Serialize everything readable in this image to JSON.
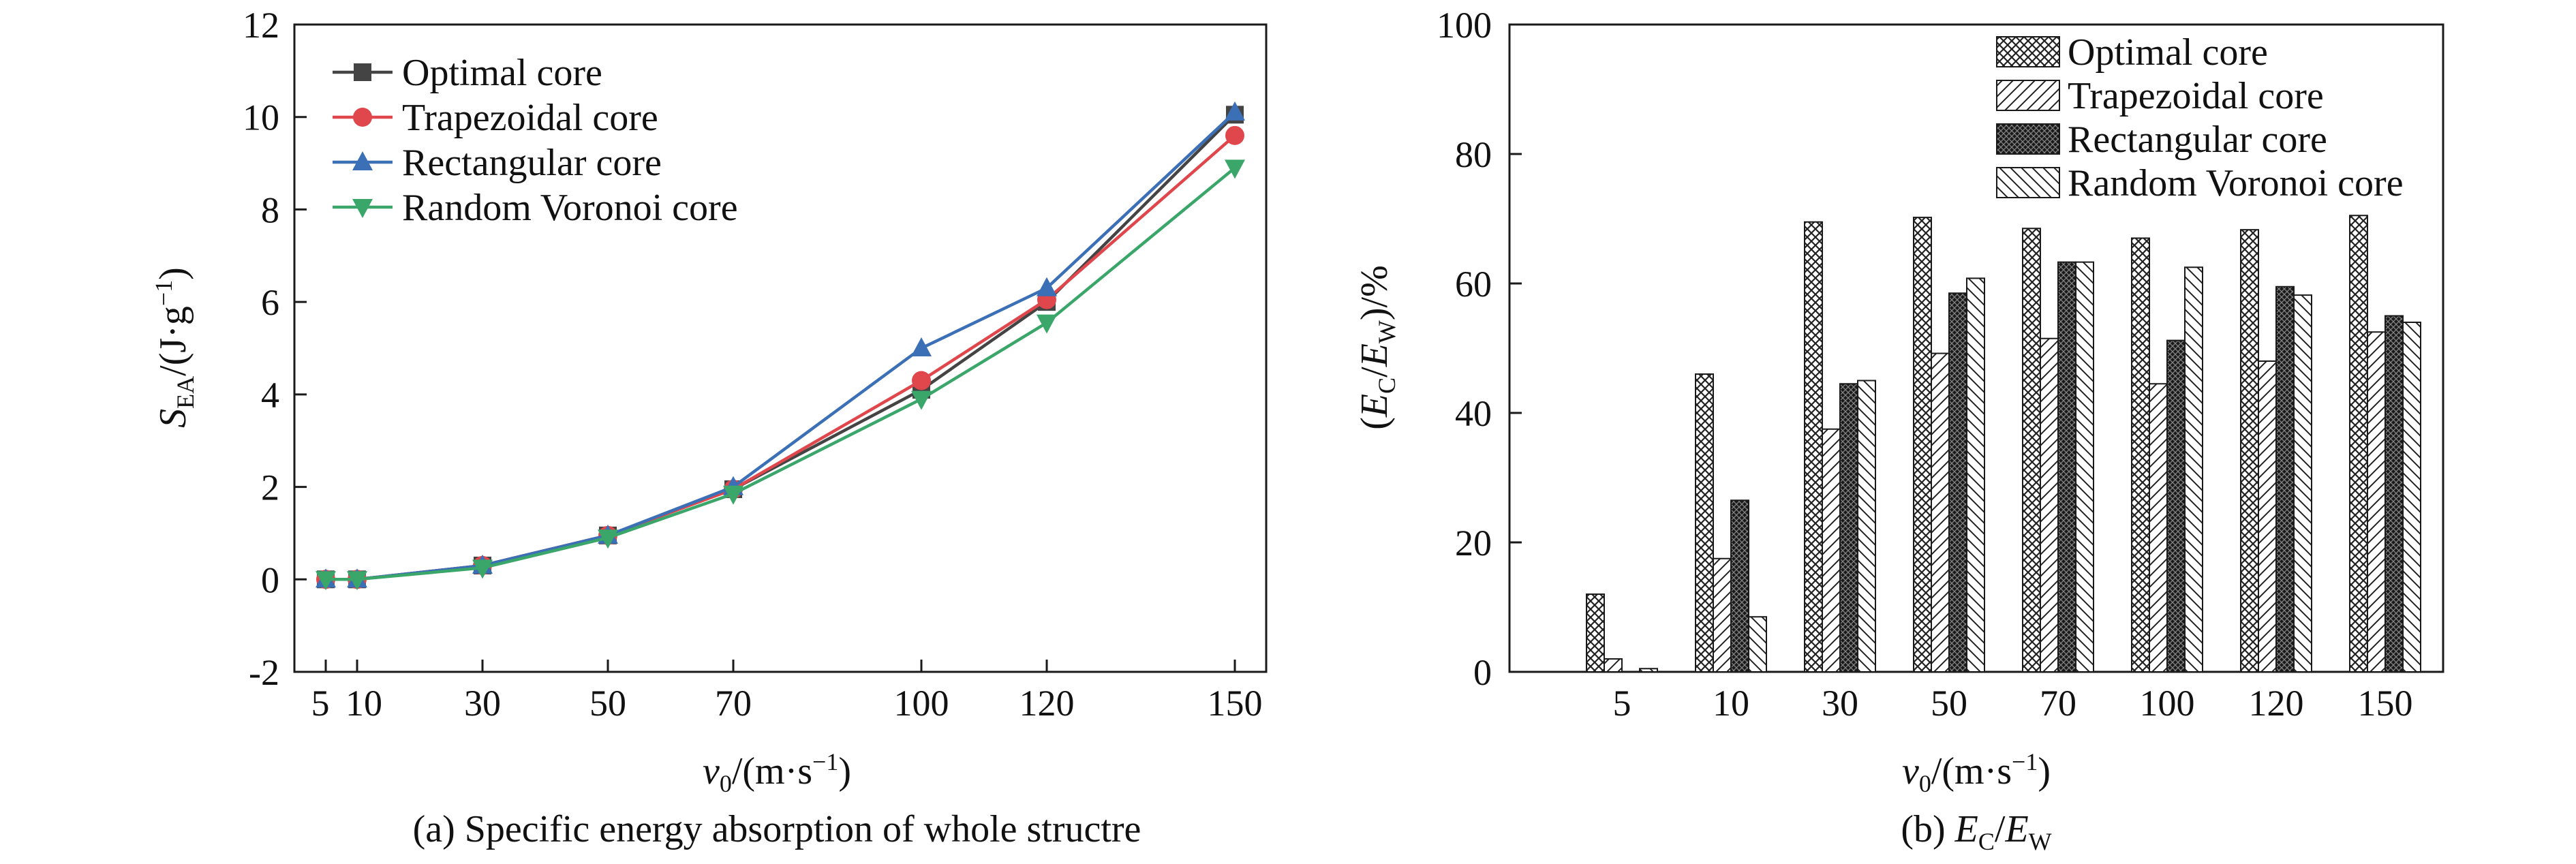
{
  "colors": {
    "axis": "#1a1a1a",
    "optimal": "#444444",
    "trapezoidal": "#e0474c",
    "rectangular": "#3b6fb6",
    "voronoi": "#3aa66a"
  },
  "chart_data": [
    {
      "type": "line",
      "caption": "(a) Specific energy absorption of whole structre",
      "xlabel": "v0/(m·s−1)",
      "ylabel": "SEA/(J·g−1)",
      "x": [
        5,
        10,
        30,
        50,
        70,
        100,
        120,
        150
      ],
      "xticks": [
        "5",
        "10",
        "30",
        "50",
        "70",
        "100",
        "120",
        "150"
      ],
      "xlim": [
        0,
        155
      ],
      "ylim": [
        -2,
        12
      ],
      "yticks": [
        -2,
        0,
        2,
        4,
        6,
        8,
        10,
        12
      ],
      "grid": false,
      "legend_position": "top-left",
      "series": [
        {
          "name": "Optimal core",
          "marker": "square",
          "color": "#444444",
          "values": [
            0,
            0,
            0.3,
            0.95,
            1.95,
            4.1,
            6.0,
            10.05
          ]
        },
        {
          "name": "Trapezoidal core",
          "marker": "circle",
          "color": "#e0474c",
          "values": [
            0,
            0,
            0.3,
            0.95,
            1.95,
            4.3,
            6.05,
            9.6
          ]
        },
        {
          "name": "Rectangular core",
          "marker": "triangle-up",
          "color": "#3b6fb6",
          "values": [
            0,
            0,
            0.3,
            0.95,
            2.0,
            5.0,
            6.3,
            10.1
          ]
        },
        {
          "name": "Random Voronoi core",
          "marker": "triangle-down",
          "color": "#3aa66a",
          "values": [
            0,
            0,
            0.25,
            0.9,
            1.85,
            3.9,
            5.55,
            8.9
          ]
        }
      ]
    },
    {
      "type": "bar",
      "caption": "(b) EC/EW",
      "xlabel": "v0/(m·s−1)",
      "ylabel": "(EC/EW)/%",
      "categories": [
        "5",
        "10",
        "30",
        "50",
        "70",
        "100",
        "120",
        "150"
      ],
      "ylim": [
        0,
        100
      ],
      "yticks": [
        0,
        20,
        40,
        60,
        80,
        100
      ],
      "grid": false,
      "legend_position": "top-right",
      "series": [
        {
          "name": "Optimal core",
          "pattern": "crosshatch",
          "values": [
            12,
            46,
            69.5,
            70.2,
            68.5,
            67,
            68.3,
            70.5
          ]
        },
        {
          "name": "Trapezoidal core",
          "pattern": "diagonal-right",
          "values": [
            2,
            17.5,
            37.5,
            49.2,
            51.5,
            44.5,
            48,
            52.5
          ]
        },
        {
          "name": "Rectangular core",
          "pattern": "dense-dark",
          "values": [
            0,
            26.5,
            44.5,
            58.5,
            63.3,
            51.2,
            59.5,
            55
          ]
        },
        {
          "name": "Random Voronoi core",
          "pattern": "diagonal-left",
          "values": [
            0.5,
            8.5,
            45,
            60.8,
            63.3,
            62.5,
            58.2,
            54
          ]
        }
      ]
    }
  ]
}
